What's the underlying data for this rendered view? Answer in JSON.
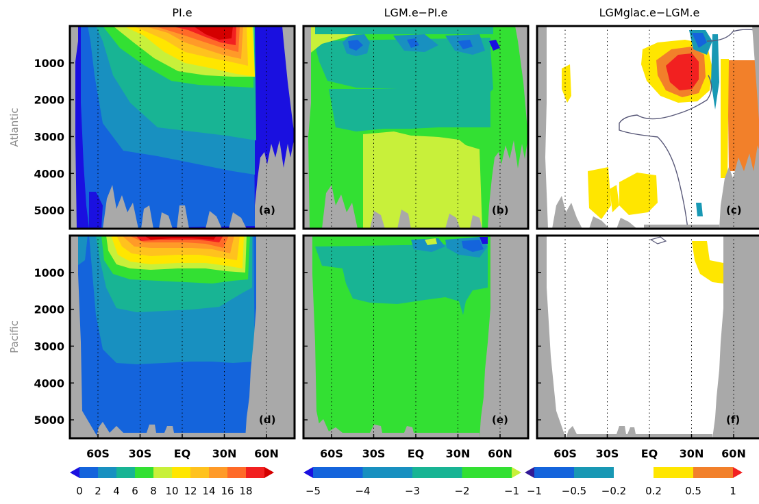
{
  "chart_data": {
    "type": "heatmap",
    "column_titles": [
      "PI.e",
      "LGM.e−PI.e",
      "LGMglac.e−LGM.e"
    ],
    "row_labels": [
      "Atlantic",
      "Pacific"
    ],
    "panel_labels": [
      "(a)",
      "(b)",
      "(c)",
      "(d)",
      "(e)",
      "(f)"
    ],
    "depth_ticks": [
      "1000",
      "2000",
      "3000",
      "4000",
      "5000"
    ],
    "depth_values": [
      1000,
      2000,
      3000,
      4000,
      5000
    ],
    "depth_range": [
      0,
      5500
    ],
    "lat_ticks": [
      "60S",
      "30S",
      "EQ",
      "30N",
      "60N"
    ],
    "lat_values": [
      -60,
      -30,
      0,
      30,
      60
    ],
    "lat_range": [
      -80,
      80
    ],
    "land_color": "#a9a9a9",
    "colorbars": [
      {
        "labels": [
          "0",
          "2",
          "4",
          "6",
          "8",
          "10",
          "12",
          "14",
          "16",
          "18"
        ],
        "values": [
          0,
          2,
          4,
          6,
          8,
          10,
          12,
          14,
          16,
          18
        ],
        "colors": [
          "#1a10e0",
          "#1464dc",
          "#1890c0",
          "#18b494",
          "#33e033",
          "#c8f03a",
          "#ffe600",
          "#ffc21e",
          "#ff9a28",
          "#ff6a28",
          "#f22020",
          "#d40000"
        ]
      },
      {
        "labels": [
          "−5",
          "−4",
          "−3",
          "−2",
          "−1"
        ],
        "values": [
          -5,
          -4,
          -3,
          -2,
          -1
        ],
        "colors": [
          "#1a10e0",
          "#1464dc",
          "#1890c0",
          "#18b494",
          "#33e033",
          "#c8f03a"
        ]
      },
      {
        "labels": [
          "−1",
          "−0.5",
          "−0.2",
          "0.2",
          "0.5",
          "1"
        ],
        "values": [
          -1,
          -0.5,
          -0.2,
          0.2,
          0.5,
          1
        ],
        "colors": [
          "#321a96",
          "#1464dc",
          "#1898b4",
          "#ffffff",
          "#ffe600",
          "#f2802a",
          "#f22020"
        ]
      }
    ]
  }
}
